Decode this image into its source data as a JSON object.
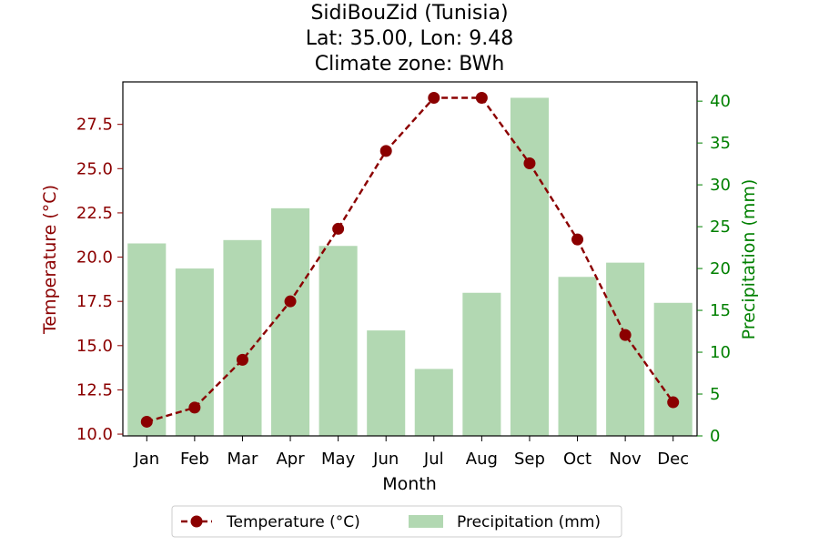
{
  "chart_data": {
    "type": "bar",
    "title": [
      "SidiBouZid (Tunisia)",
      "Lat: 35.00, Lon: 9.48",
      "Climate zone: BWh"
    ],
    "xlabel": "Month",
    "categories": [
      "Jan",
      "Feb",
      "Mar",
      "Apr",
      "May",
      "Jun",
      "Jul",
      "Aug",
      "Sep",
      "Oct",
      "Nov",
      "Dec"
    ],
    "y_left": {
      "label": "Temperature (°C)",
      "ylim": [
        9.9,
        29.9
      ],
      "ticks": [
        "10.0",
        "12.5",
        "15.0",
        "17.5",
        "20.0",
        "22.5",
        "25.0",
        "27.5"
      ],
      "color": "#8b0000"
    },
    "y_right": {
      "label": "Precipitation (mm)",
      "ylim": [
        0,
        42.3
      ],
      "ticks": [
        "0",
        "5",
        "10",
        "15",
        "20",
        "25",
        "30",
        "35",
        "40"
      ],
      "color": "#008000"
    },
    "series": [
      {
        "name": "Temperature (°C)",
        "type": "line",
        "axis": "left",
        "color": "#8b0000",
        "values": [
          10.7,
          11.5,
          14.2,
          17.5,
          21.6,
          26.0,
          29.0,
          29.0,
          25.3,
          21.0,
          15.6,
          11.8
        ]
      },
      {
        "name": "Precipitation (mm)",
        "type": "bar",
        "axis": "right",
        "color": "#b2d8b2",
        "values": [
          23.0,
          20.0,
          23.4,
          27.2,
          22.7,
          12.6,
          8.0,
          17.1,
          40.4,
          19.0,
          20.7,
          15.9
        ]
      }
    ],
    "grid": false,
    "legend_position": "bottom-center"
  }
}
